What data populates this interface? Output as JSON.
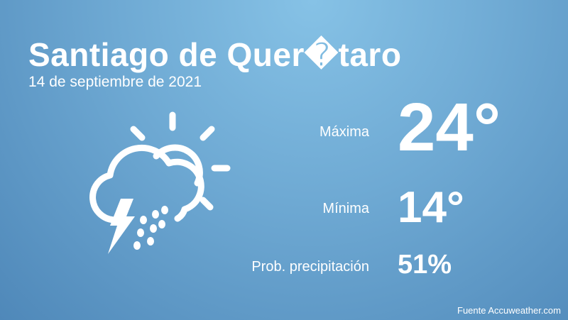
{
  "header": {
    "title": "Santiago de Quer�taro",
    "date": "14 de septiembre de 2021"
  },
  "rows": [
    {
      "label": "Máxima",
      "value": "24°"
    },
    {
      "label": "Mínima",
      "value": "14°"
    },
    {
      "label": "Prob. precipitación",
      "value": "51%"
    }
  ],
  "footer": {
    "source": "Fuente Accuweather.com"
  }
}
